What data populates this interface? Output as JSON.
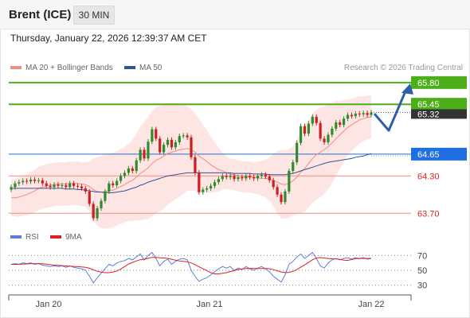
{
  "header": {
    "instrument": "Brent (ICE)",
    "interval": "30 MIN"
  },
  "timestamp": "Thursday, January 22, 2026 12:39:37 AM CET",
  "legend": {
    "ma20": {
      "label": "MA 20 + Bollinger Bands",
      "color": "#f28b82"
    },
    "ma50": {
      "label": "MA 50",
      "color": "#2f5597"
    },
    "rsi": {
      "label": "RSI",
      "color": "#5b7fd6"
    },
    "rsi_ma": {
      "label": "9MA",
      "color": "#e02020"
    }
  },
  "credit": "Research © 2026 Trading Central",
  "colors": {
    "resistance": "#4caf1a",
    "pivot": "#1f6fe0",
    "support": "#f28b82",
    "support_text": "#e02020",
    "price_tag": "#333333",
    "forecast_arrow": "#2f5fa8",
    "candle_up": "#2e8b2e",
    "candle_down": "#cc1f1f",
    "band_fill": "#fde2e0"
  },
  "chart_data": {
    "type": "candlestick",
    "price_range": [
      63.55,
      65.9
    ],
    "x_labels": [
      "Jan 20",
      "Jan 21",
      "Jan 22"
    ],
    "last_price": "65.32",
    "levels": [
      {
        "value": "65.80",
        "kind": "resistance"
      },
      {
        "value": "65.45",
        "kind": "resistance"
      },
      {
        "value": "64.65",
        "kind": "pivot"
      },
      {
        "value": "64.30",
        "kind": "support"
      },
      {
        "value": "63.70",
        "kind": "support"
      }
    ],
    "closes": [
      64.12,
      64.18,
      64.2,
      64.22,
      64.21,
      64.24,
      64.22,
      64.23,
      64.18,
      64.14,
      64.12,
      64.16,
      64.14,
      64.15,
      64.12,
      64.18,
      64.14,
      64.13,
      64.1,
      64.05,
      63.85,
      63.62,
      63.78,
      63.9,
      64.05,
      64.18,
      64.15,
      64.22,
      64.3,
      64.35,
      64.42,
      64.38,
      64.55,
      64.72,
      64.58,
      64.85,
      65.05,
      64.9,
      64.68,
      64.8,
      64.88,
      64.76,
      64.84,
      64.94,
      64.95,
      64.92,
      64.6,
      64.35,
      64.04,
      64.08,
      64.1,
      64.14,
      64.2,
      64.25,
      64.3,
      64.28,
      64.3,
      64.25,
      64.28,
      64.26,
      64.3,
      64.28,
      64.26,
      64.3,
      64.32,
      64.29,
      64.23,
      64.12,
      64.0,
      63.88,
      64.05,
      64.38,
      64.52,
      64.83,
      65.1,
      64.98,
      65.14,
      65.25,
      65.15,
      64.9,
      64.84,
      64.96,
      65.06,
      65.16,
      65.12,
      65.22,
      65.28,
      65.26,
      65.3,
      65.29,
      65.31,
      65.28,
      65.32
    ],
    "ma20": [
      63.95,
      63.95,
      63.96,
      63.98,
      64.0,
      64.03,
      64.06,
      64.1,
      64.12,
      64.14,
      64.15,
      64.16,
      64.17,
      64.17,
      64.17,
      64.18,
      64.18,
      64.18,
      64.17,
      64.16,
      64.13,
      64.08,
      64.05,
      64.04,
      64.05,
      64.06,
      64.07,
      64.1,
      64.13,
      64.16,
      64.2,
      64.23,
      64.28,
      64.34,
      64.38,
      64.43,
      64.5,
      64.55,
      64.58,
      64.62,
      64.66,
      64.68,
      64.7,
      64.72,
      64.73,
      64.74,
      64.72,
      64.68,
      64.62,
      64.58,
      64.53,
      64.48,
      64.44,
      64.4,
      64.38,
      64.35,
      64.33,
      64.32,
      64.3,
      64.29,
      64.28,
      64.28,
      64.27,
      64.27,
      64.26,
      64.26,
      64.25,
      64.23,
      64.2,
      64.17,
      64.16,
      64.18,
      64.22,
      64.28,
      64.36,
      64.42,
      64.5,
      64.58,
      64.64,
      64.68,
      64.72,
      64.77,
      64.83,
      64.9,
      64.96,
      65.02,
      65.08,
      65.12,
      65.16,
      65.2,
      65.22,
      65.24,
      65.25
    ],
    "ma50": [
      64.1,
      64.1,
      64.1,
      64.1,
      64.1,
      64.1,
      64.1,
      64.1,
      64.1,
      64.1,
      64.1,
      64.1,
      64.1,
      64.1,
      64.09,
      64.09,
      64.09,
      64.08,
      64.08,
      64.07,
      64.06,
      64.05,
      64.04,
      64.04,
      64.03,
      64.03,
      64.03,
      64.04,
      64.05,
      64.06,
      64.08,
      64.1,
      64.12,
      64.15,
      64.17,
      64.2,
      64.22,
      64.24,
      64.26,
      64.28,
      64.3,
      64.31,
      64.32,
      64.33,
      64.34,
      64.35,
      64.35,
      64.35,
      64.35,
      64.35,
      64.35,
      64.35,
      64.35,
      64.35,
      64.35,
      64.35,
      64.35,
      64.34,
      64.34,
      64.34,
      64.34,
      64.34,
      64.33,
      64.33,
      64.33,
      64.33,
      64.32,
      64.32,
      64.32,
      64.32,
      64.32,
      64.33,
      64.34,
      64.36,
      64.38,
      64.4,
      64.42,
      64.44,
      64.46,
      64.48,
      64.5,
      64.52,
      64.53,
      64.54,
      64.55,
      64.56,
      64.57,
      64.58,
      64.6,
      64.61,
      64.62,
      64.64,
      64.66
    ],
    "band_width": [
      0.3,
      0.3,
      0.32,
      0.32,
      0.33,
      0.34,
      0.34,
      0.35,
      0.35,
      0.35,
      0.35,
      0.35,
      0.35,
      0.35,
      0.35,
      0.35,
      0.35,
      0.35,
      0.35,
      0.36,
      0.4,
      0.5,
      0.55,
      0.58,
      0.6,
      0.6,
      0.6,
      0.6,
      0.6,
      0.6,
      0.62,
      0.65,
      0.7,
      0.75,
      0.78,
      0.82,
      0.85,
      0.85,
      0.85,
      0.85,
      0.82,
      0.8,
      0.78,
      0.75,
      0.72,
      0.68,
      0.65,
      0.62,
      0.6,
      0.55,
      0.5,
      0.45,
      0.4,
      0.35,
      0.3,
      0.26,
      0.25,
      0.25,
      0.25,
      0.25,
      0.25,
      0.25,
      0.25,
      0.26,
      0.28,
      0.3,
      0.35,
      0.42,
      0.5,
      0.55,
      0.55,
      0.55,
      0.55,
      0.6,
      0.65,
      0.7,
      0.7,
      0.72,
      0.72,
      0.72,
      0.7,
      0.68,
      0.65,
      0.6,
      0.55,
      0.5,
      0.45,
      0.42,
      0.4,
      0.38,
      0.36,
      0.35,
      0.34
    ],
    "rsi": {
      "levels": [
        70,
        50,
        30
      ],
      "range": [
        20,
        80
      ],
      "values": [
        58,
        59,
        58,
        60,
        59,
        60,
        58,
        59,
        57,
        56,
        55,
        56,
        55,
        56,
        54,
        56,
        54,
        53,
        52,
        50,
        42,
        33,
        40,
        46,
        52,
        58,
        56,
        60,
        62,
        63,
        66,
        64,
        68,
        72,
        64,
        70,
        74,
        66,
        56,
        62,
        65,
        58,
        62,
        65,
        66,
        64,
        50,
        42,
        35,
        38,
        40,
        44,
        48,
        52,
        55,
        53,
        55,
        50,
        53,
        51,
        55,
        52,
        50,
        53,
        55,
        52,
        48,
        42,
        38,
        34,
        44,
        58,
        62,
        68,
        72,
        66,
        70,
        74,
        66,
        56,
        53,
        60,
        64,
        66,
        64,
        66,
        67,
        65,
        67,
        66,
        67,
        65,
        66
      ],
      "ma9": [
        58,
        58,
        58,
        58.5,
        58.6,
        59,
        59,
        59,
        58.8,
        58.2,
        57.6,
        57,
        56.6,
        56.3,
        55.9,
        55.5,
        55.2,
        54.9,
        54.6,
        54,
        52.8,
        50.6,
        48.6,
        47.6,
        46.8,
        46.8,
        47.6,
        49,
        51.6,
        55,
        58.5,
        60.6,
        62.6,
        64.3,
        64.9,
        66.2,
        67.4,
        67.6,
        66.9,
        66.6,
        66.1,
        64.9,
        63.6,
        62.6,
        62.1,
        61.6,
        59.9,
        57.6,
        54.7,
        52.3,
        49.4,
        46.9,
        45.2,
        45.2,
        45.9,
        46.8,
        48.3,
        49.6,
        51.1,
        51.9,
        52.5,
        52.6,
        52.4,
        52.4,
        52.5,
        52.5,
        52.1,
        50.9,
        49.4,
        47.8,
        46.9,
        47.2,
        48.6,
        51,
        54.2,
        57.3,
        60.8,
        64.1,
        66.6,
        67.1,
        66.6,
        65.9,
        65.5,
        65.4,
        64.8,
        63.6,
        63.4,
        64.5,
        65.7,
        65.8,
        66.1,
        66,
        66.2
      ]
    }
  }
}
